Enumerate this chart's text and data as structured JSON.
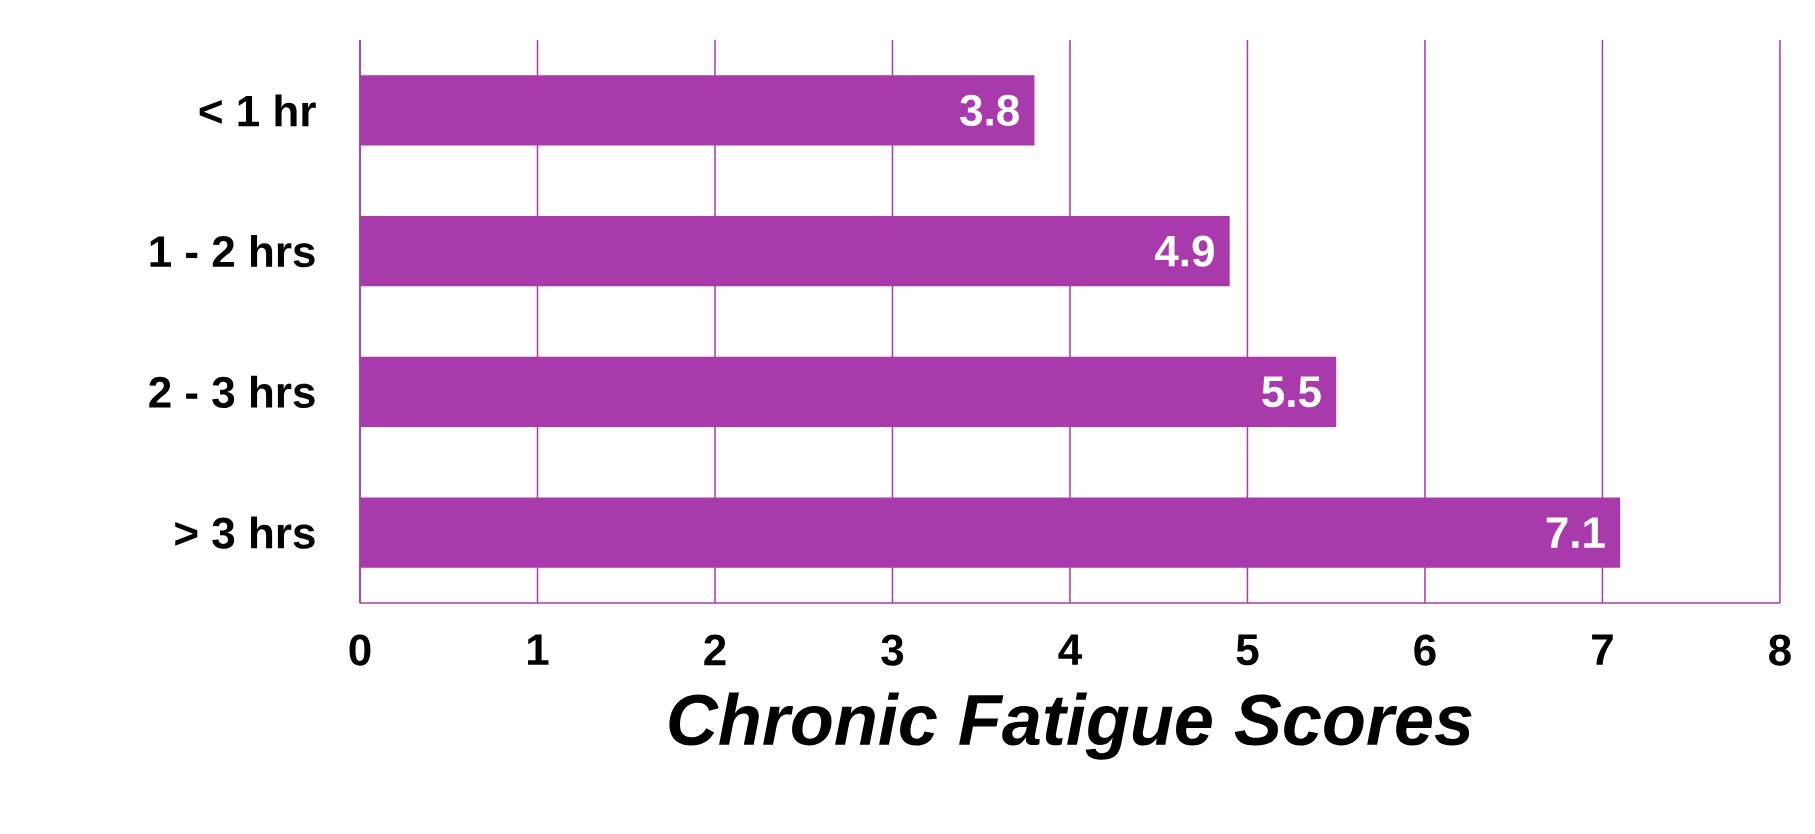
{
  "chart_data": {
    "type": "bar",
    "orientation": "horizontal",
    "xlabel": "Chronic Fatigue Scores",
    "categories": [
      "< 1 hr",
      "1 - 2 hrs",
      "2 - 3 hrs",
      "> 3 hrs"
    ],
    "values": [
      3.8,
      4.9,
      5.5,
      7.1
    ],
    "color": "#a83aab",
    "data_labels": true,
    "xlim": [
      0,
      8
    ],
    "xticks": [
      0,
      1,
      2,
      3,
      4,
      5,
      6,
      7,
      8
    ],
    "grid": "x"
  }
}
